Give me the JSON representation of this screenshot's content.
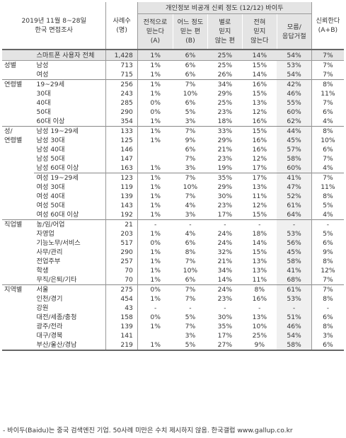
{
  "header": {
    "survey_line1": "2019년 11월 8~28일",
    "survey_line2": "한국 면접조사",
    "n_line1": "사례수",
    "n_line2": "(명)",
    "group_title": "개인정보 비공개 신뢰 정도 (12/12) 바이두",
    "sub_a": [
      "전적으로",
      "믿는다",
      "(A)"
    ],
    "sub_b": [
      "어느 정도",
      "믿는 편",
      "(B)"
    ],
    "sub_c": [
      "별로",
      "믿지",
      "않는 편"
    ],
    "sub_d": [
      "전혀",
      "믿지",
      "않는다"
    ],
    "sub_dk": [
      "모름/",
      "응답거절"
    ],
    "sub_trust": [
      "신뢰한다",
      "(A+B)"
    ]
  },
  "rows": [
    {
      "group": "",
      "sub": "스마트폰 사용자 전체",
      "n": "1,428",
      "a": "1%",
      "b": "6%",
      "c": "25%",
      "d": "14%",
      "dk": "54%",
      "t": "7%",
      "cls": "total"
    },
    {
      "group": "성별",
      "sub": "남성",
      "n": "713",
      "a": "1%",
      "b": "6%",
      "c": "25%",
      "d": "15%",
      "dk": "53%",
      "t": "7%",
      "cls": "gstart"
    },
    {
      "group": "",
      "sub": "여성",
      "n": "715",
      "a": "1%",
      "b": "6%",
      "c": "26%",
      "d": "14%",
      "dk": "54%",
      "t": "7%",
      "cls": ""
    },
    {
      "group": "연령별",
      "sub": "19~29세",
      "n": "256",
      "a": "1%",
      "b": "7%",
      "c": "34%",
      "d": "16%",
      "dk": "42%",
      "t": "8%",
      "cls": "gstart"
    },
    {
      "group": "",
      "sub": "30대",
      "n": "243",
      "a": "1%",
      "b": "10%",
      "c": "29%",
      "d": "15%",
      "dk": "46%",
      "t": "11%",
      "cls": ""
    },
    {
      "group": "",
      "sub": "40대",
      "n": "285",
      "a": "0%",
      "b": "6%",
      "c": "25%",
      "d": "13%",
      "dk": "55%",
      "t": "7%",
      "cls": ""
    },
    {
      "group": "",
      "sub": "50대",
      "n": "290",
      "a": "0%",
      "b": "5%",
      "c": "23%",
      "d": "12%",
      "dk": "60%",
      "t": "6%",
      "cls": ""
    },
    {
      "group": "",
      "sub": "60대 이상",
      "n": "354",
      "a": "1%",
      "b": "3%",
      "c": "18%",
      "d": "16%",
      "dk": "62%",
      "t": "4%",
      "cls": ""
    },
    {
      "group": "성/",
      "sub": "남성 19~29세",
      "n": "133",
      "a": "1%",
      "b": "7%",
      "c": "33%",
      "d": "15%",
      "dk": "44%",
      "t": "8%",
      "cls": "gstart"
    },
    {
      "group": "연령별",
      "sub": "남성 30대",
      "n": "125",
      "a": "1%",
      "b": "9%",
      "c": "29%",
      "d": "16%",
      "dk": "45%",
      "t": "10%",
      "cls": ""
    },
    {
      "group": "",
      "sub": "남성 40대",
      "n": "146",
      "a": "",
      "b": "6%",
      "c": "21%",
      "d": "16%",
      "dk": "57%",
      "t": "6%",
      "cls": ""
    },
    {
      "group": "",
      "sub": "남성 50대",
      "n": "147",
      "a": "",
      "b": "7%",
      "c": "23%",
      "d": "12%",
      "dk": "58%",
      "t": "7%",
      "cls": ""
    },
    {
      "group": "",
      "sub": "남성 60대 이상",
      "n": "163",
      "a": "1%",
      "b": "3%",
      "c": "19%",
      "d": "17%",
      "dk": "60%",
      "t": "4%",
      "cls": ""
    },
    {
      "group": "",
      "sub": "여성 19~29세",
      "n": "123",
      "a": "1%",
      "b": "7%",
      "c": "35%",
      "d": "17%",
      "dk": "41%",
      "t": "7%",
      "cls": "hstart"
    },
    {
      "group": "",
      "sub": "여성 30대",
      "n": "119",
      "a": "1%",
      "b": "10%",
      "c": "29%",
      "d": "13%",
      "dk": "47%",
      "t": "11%",
      "cls": ""
    },
    {
      "group": "",
      "sub": "여성 40대",
      "n": "139",
      "a": "1%",
      "b": "7%",
      "c": "30%",
      "d": "11%",
      "dk": "52%",
      "t": "8%",
      "cls": ""
    },
    {
      "group": "",
      "sub": "여성 50대",
      "n": "143",
      "a": "1%",
      "b": "4%",
      "c": "23%",
      "d": "12%",
      "dk": "61%",
      "t": "5%",
      "cls": ""
    },
    {
      "group": "",
      "sub": "여성 60대 이상",
      "n": "192",
      "a": "1%",
      "b": "3%",
      "c": "17%",
      "d": "15%",
      "dk": "64%",
      "t": "4%",
      "cls": ""
    },
    {
      "group": "직업별",
      "sub": "농/임/어업",
      "n": "21",
      "a": "-",
      "b": "-",
      "c": "-",
      "d": "-",
      "dk": "-",
      "t": "-",
      "cls": "gstart"
    },
    {
      "group": "",
      "sub": "자영업",
      "n": "203",
      "a": "1%",
      "b": "4%",
      "c": "24%",
      "d": "18%",
      "dk": "53%",
      "t": "5%",
      "cls": ""
    },
    {
      "group": "",
      "sub": "기능노무/서비스",
      "n": "517",
      "a": "0%",
      "b": "6%",
      "c": "24%",
      "d": "14%",
      "dk": "56%",
      "t": "6%",
      "cls": ""
    },
    {
      "group": "",
      "sub": "사무/관리",
      "n": "290",
      "a": "1%",
      "b": "8%",
      "c": "32%",
      "d": "15%",
      "dk": "45%",
      "t": "9%",
      "cls": ""
    },
    {
      "group": "",
      "sub": "전업주부",
      "n": "257",
      "a": "1%",
      "b": "7%",
      "c": "21%",
      "d": "13%",
      "dk": "58%",
      "t": "8%",
      "cls": ""
    },
    {
      "group": "",
      "sub": "학생",
      "n": "70",
      "a": "1%",
      "b": "10%",
      "c": "34%",
      "d": "13%",
      "dk": "41%",
      "t": "12%",
      "cls": ""
    },
    {
      "group": "",
      "sub": "무직/은퇴/기타",
      "n": "70",
      "a": "1%",
      "b": "6%",
      "c": "14%",
      "d": "11%",
      "dk": "68%",
      "t": "7%",
      "cls": ""
    },
    {
      "group": "지역별",
      "sub": "서울",
      "n": "275",
      "a": "0%",
      "b": "7%",
      "c": "24%",
      "d": "8%",
      "dk": "61%",
      "t": "7%",
      "cls": "gstart"
    },
    {
      "group": "",
      "sub": "인천/경기",
      "n": "454",
      "a": "1%",
      "b": "7%",
      "c": "23%",
      "d": "16%",
      "dk": "53%",
      "t": "8%",
      "cls": ""
    },
    {
      "group": "",
      "sub": "강원",
      "n": "43",
      "a": "-",
      "b": "-",
      "c": "-",
      "d": "-",
      "dk": "-",
      "t": "-",
      "cls": ""
    },
    {
      "group": "",
      "sub": "대전/세종/충청",
      "n": "158",
      "a": "0%",
      "b": "5%",
      "c": "30%",
      "d": "13%",
      "dk": "51%",
      "t": "6%",
      "cls": ""
    },
    {
      "group": "",
      "sub": "광주/전라",
      "n": "139",
      "a": "1%",
      "b": "7%",
      "c": "35%",
      "d": "10%",
      "dk": "46%",
      "t": "8%",
      "cls": ""
    },
    {
      "group": "",
      "sub": "대구/경북",
      "n": "141",
      "a": "",
      "b": "3%",
      "c": "17%",
      "d": "25%",
      "dk": "54%",
      "t": "3%",
      "cls": ""
    },
    {
      "group": "",
      "sub": "부산/울산/경남",
      "n": "219",
      "a": "1%",
      "b": "5%",
      "c": "27%",
      "d": "9%",
      "dk": "58%",
      "t": "6%",
      "cls": "last"
    }
  ],
  "footer": "- 바이두(Baidu)는 중국 검색엔진 기업. 50사례 미만은 수치 제시하지 않음. 한국갤럽 www.gallup.co.kr"
}
